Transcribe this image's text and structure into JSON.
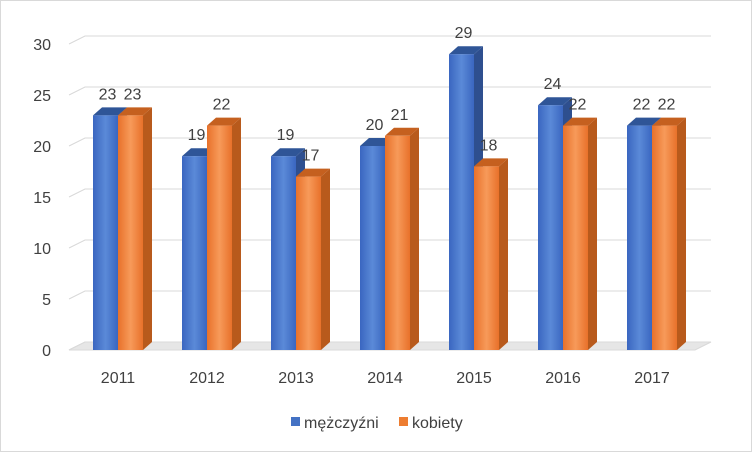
{
  "chart_data": {
    "type": "bar",
    "categories": [
      "2011",
      "2012",
      "2013",
      "2014",
      "2015",
      "2016",
      "2017"
    ],
    "series": [
      {
        "name": "mężczyźni",
        "values": [
          23,
          19,
          19,
          20,
          29,
          24,
          22
        ],
        "color": "#4472c4"
      },
      {
        "name": "kobiety",
        "values": [
          23,
          22,
          17,
          21,
          18,
          22,
          22
        ],
        "color": "#ed7d31"
      }
    ],
    "yticks": [
      "0",
      "5",
      "10",
      "15",
      "20",
      "25",
      "30"
    ],
    "ylim": [
      0,
      30
    ],
    "grid": true,
    "legend_position": "bottom",
    "title": "",
    "xlabel": "",
    "ylabel": ""
  }
}
